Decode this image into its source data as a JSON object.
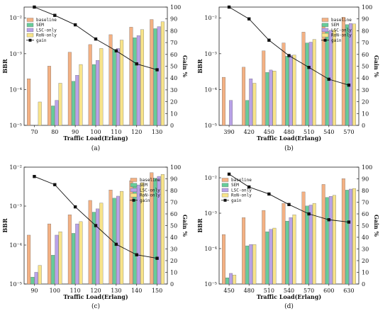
{
  "colors": {
    "baseline": "#F4B183",
    "SEM": "#66CC99",
    "LSC-only": "#B9A2E8",
    "RoN-only": "#F8E48A",
    "gain": "#111111"
  },
  "chart_data": [
    {
      "type": "bar",
      "panel_label": "(a)",
      "xlabel": "Traffic Load(Erlang)",
      "ylabel": "BBR",
      "ylabel2": "Gain %",
      "yscale": "log",
      "ylim": [
        1e-05,
        0.02
      ],
      "y_ticks": [
        {
          "value": 1e-05,
          "label": "10⁻⁵"
        },
        {
          "value": 0.0001,
          "label": "10⁻⁴"
        },
        {
          "value": 0.001,
          "label": "10⁻³"
        },
        {
          "value": 0.01,
          "label": "10⁻²"
        }
      ],
      "y2lim": [
        0,
        100
      ],
      "y2_ticks": [
        0,
        10,
        20,
        30,
        40,
        50,
        60,
        70,
        80,
        90,
        100
      ],
      "categories": [
        "70",
        "80",
        "90",
        "100",
        "110",
        "120",
        "130"
      ],
      "series": [
        {
          "name": "baseline",
          "values": [
            0.0002,
            0.00045,
            0.0011,
            0.0018,
            0.0034,
            0.0055,
            0.009
          ]
        },
        {
          "name": "SEM",
          "values": [
            1e-05,
            3.5e-05,
            0.00017,
            0.0005,
            0.0013,
            0.0028,
            0.005
          ]
        },
        {
          "name": "LSC-only",
          "values": [
            1e-05,
            5e-05,
            0.00025,
            0.00065,
            0.0014,
            0.0032,
            0.0057
          ]
        },
        {
          "name": "RoN-only",
          "values": [
            4.5e-05,
            0.00015,
            0.0005,
            0.0014,
            0.0024,
            0.0047,
            0.0078
          ]
        }
      ],
      "line": {
        "name": "gain",
        "values": [
          100,
          93,
          85,
          73,
          63,
          52,
          47
        ]
      },
      "legend_position": "top-left"
    },
    {
      "type": "bar",
      "panel_label": "(b)",
      "xlabel": "Traffic Load(Erlang)",
      "ylabel": "BBR",
      "ylabel2": "Gain %",
      "yscale": "log",
      "ylim": [
        1e-05,
        0.02
      ],
      "y_ticks": [
        {
          "value": 1e-05,
          "label": "10⁻⁵"
        },
        {
          "value": 0.0001,
          "label": "10⁻⁴"
        },
        {
          "value": 0.001,
          "label": "10⁻³"
        },
        {
          "value": 0.01,
          "label": "10⁻²"
        }
      ],
      "y2lim": [
        0,
        100
      ],
      "y2_ticks": [
        0,
        10,
        20,
        30,
        40,
        50,
        60,
        70,
        80,
        90,
        100
      ],
      "categories": [
        "390",
        "420",
        "450",
        "480",
        "510",
        "540",
        "570"
      ],
      "series": [
        {
          "name": "baseline",
          "values": [
            0.00022,
            0.00042,
            0.0012,
            0.002,
            0.004,
            0.0068,
            0.0105
          ]
        },
        {
          "name": "SEM",
          "values": [
            1e-05,
            5e-05,
            0.0003,
            0.00085,
            0.002,
            0.0042,
            0.0065
          ]
        },
        {
          "name": "LSC-only",
          "values": [
            5e-05,
            0.0002,
            0.00035,
            0.0009,
            0.0021,
            0.0045,
            0.007
          ]
        },
        {
          "name": "RoN-only",
          "values": [
            1e-05,
            0.00015,
            0.00033,
            0.00092,
            0.0025,
            0.0046,
            0.0068
          ]
        }
      ],
      "line": {
        "name": "gain",
        "values": [
          100,
          90,
          72,
          59,
          49,
          39,
          34
        ]
      },
      "legend_position": "top-right"
    },
    {
      "type": "bar",
      "panel_label": "(c)",
      "xlabel": "Traffic Load(Erlang)",
      "ylabel": "BBR",
      "ylabel2": "Gain %",
      "yscale": "log",
      "ylim": [
        1e-05,
        0.01
      ],
      "y_ticks": [
        {
          "value": 1e-05,
          "label": "10⁻⁵"
        },
        {
          "value": 0.0001,
          "label": "10⁻⁴"
        },
        {
          "value": 0.001,
          "label": "10⁻³"
        },
        {
          "value": 0.01,
          "label": "10⁻²"
        }
      ],
      "y2lim": [
        0,
        100
      ],
      "y2_ticks": [
        0,
        10,
        20,
        30,
        40,
        50,
        60,
        70,
        80,
        90,
        100
      ],
      "categories": [
        "90",
        "100",
        "110",
        "120",
        "130",
        "140",
        "150"
      ],
      "series": [
        {
          "name": "baseline",
          "values": [
            0.00018,
            0.00035,
            0.0006,
            0.0014,
            0.0026,
            0.0045,
            0.0072
          ]
        },
        {
          "name": "SEM",
          "values": [
            1.5e-05,
            5.5e-05,
            0.0002,
            0.0007,
            0.0016,
            0.0032,
            0.0052
          ]
        },
        {
          "name": "LSC-only",
          "values": [
            2e-05,
            0.00018,
            0.00035,
            0.00085,
            0.0018,
            0.0035,
            0.0058
          ]
        },
        {
          "name": "RoN-only",
          "values": [
            3e-05,
            0.00022,
            0.0004,
            0.0012,
            0.0024,
            0.004,
            0.0065
          ]
        }
      ],
      "line": {
        "name": "gain",
        "values": [
          92,
          85,
          66,
          50,
          34,
          25,
          22
        ]
      },
      "legend_position": "top-right"
    },
    {
      "type": "bar",
      "panel_label": "(d)",
      "xlabel": "Traffic Load(Erlang)",
      "ylabel": "BBR",
      "ylabel2": "Gain %",
      "yscale": "log",
      "ylim": [
        1e-05,
        0.02
      ],
      "y_ticks": [
        {
          "value": 1e-05,
          "label": "10⁻⁵"
        },
        {
          "value": 0.0001,
          "label": "10⁻⁴"
        },
        {
          "value": 0.001,
          "label": "10⁻³"
        },
        {
          "value": 0.01,
          "label": "10⁻²"
        }
      ],
      "y2lim": [
        0,
        100
      ],
      "y2_ticks": [
        0,
        10,
        20,
        30,
        40,
        50,
        60,
        70,
        80,
        90,
        100
      ],
      "categories": [
        "450",
        "480",
        "510",
        "540",
        "570",
        "600",
        "630"
      ],
      "series": [
        {
          "name": "baseline",
          "values": [
            0.00025,
            0.00075,
            0.0012,
            0.0019,
            0.004,
            0.0065,
            0.0095
          ]
        },
        {
          "name": "SEM",
          "values": [
            1.5e-05,
            0.00012,
            0.0003,
            0.0006,
            0.0016,
            0.0028,
            0.0045
          ]
        },
        {
          "name": "LSC-only",
          "values": [
            2e-05,
            0.00013,
            0.00035,
            0.00075,
            0.0017,
            0.003,
            0.0048
          ]
        },
        {
          "name": "RoN-only",
          "values": [
            1.8e-05,
            0.00013,
            0.00038,
            0.0009,
            0.0019,
            0.0032,
            0.005
          ]
        }
      ],
      "line": {
        "name": "gain",
        "values": [
          94,
          83,
          77,
          68,
          60,
          55,
          53
        ]
      },
      "legend_position": "top-left"
    }
  ]
}
